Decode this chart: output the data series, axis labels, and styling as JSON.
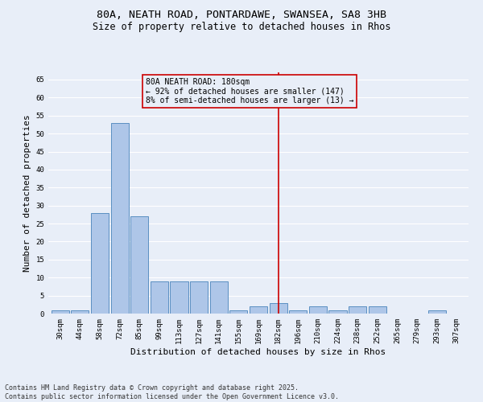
{
  "title_line1": "80A, NEATH ROAD, PONTARDAWE, SWANSEA, SA8 3HB",
  "title_line2": "Size of property relative to detached houses in Rhos",
  "xlabel": "Distribution of detached houses by size in Rhos",
  "ylabel": "Number of detached properties",
  "categories": [
    "30sqm",
    "44sqm",
    "58sqm",
    "72sqm",
    "85sqm",
    "99sqm",
    "113sqm",
    "127sqm",
    "141sqm",
    "155sqm",
    "169sqm",
    "182sqm",
    "196sqm",
    "210sqm",
    "224sqm",
    "238sqm",
    "252sqm",
    "265sqm",
    "279sqm",
    "293sqm",
    "307sqm"
  ],
  "values": [
    1,
    1,
    28,
    53,
    27,
    9,
    9,
    9,
    9,
    1,
    2,
    3,
    1,
    2,
    1,
    2,
    2,
    0,
    0,
    1,
    0
  ],
  "bar_color": "#aec6e8",
  "bar_edge_color": "#5a8fc2",
  "vline_index": 11,
  "vline_color": "#cc0000",
  "annotation_box_text": "80A NEATH ROAD: 180sqm\n← 92% of detached houses are smaller (147)\n8% of semi-detached houses are larger (13) →",
  "box_edge_color": "#cc0000",
  "background_color": "#e8eef8",
  "grid_color": "#ffffff",
  "ylim": [
    0,
    67
  ],
  "yticks": [
    0,
    5,
    10,
    15,
    20,
    25,
    30,
    35,
    40,
    45,
    50,
    55,
    60,
    65
  ],
  "footnote": "Contains HM Land Registry data © Crown copyright and database right 2025.\nContains public sector information licensed under the Open Government Licence v3.0.",
  "title_fontsize": 9.5,
  "subtitle_fontsize": 8.5,
  "tick_fontsize": 6.5,
  "ylabel_fontsize": 8,
  "xlabel_fontsize": 8,
  "annotation_fontsize": 7,
  "footnote_fontsize": 6
}
